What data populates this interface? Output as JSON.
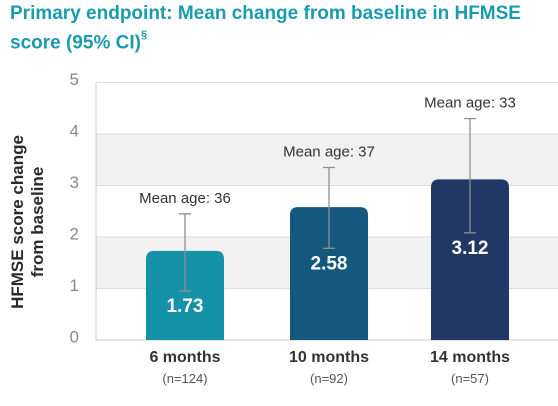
{
  "chart_data": {
    "type": "bar",
    "title": "Primary endpoint: Mean change from baseline in HFMSE score (95% CI)",
    "title_marker": "§",
    "ylabel_lines": [
      "HFMSE score change",
      "from baseline"
    ],
    "ylim": [
      0,
      5
    ],
    "yticks": [
      "0",
      "1",
      "2",
      "3",
      "4",
      "5"
    ],
    "categories": [
      "6 months",
      "10 months",
      "14 months"
    ],
    "n_labels": [
      "(n=124)",
      "(n=92)",
      "(n=57)"
    ],
    "values": [
      1.73,
      2.58,
      3.12
    ],
    "value_labels": [
      "1.73",
      "2.58",
      "3.12"
    ],
    "ci_low": [
      0.95,
      1.78,
      2.08
    ],
    "ci_high": [
      2.45,
      3.35,
      4.3
    ],
    "annotations": [
      "Mean age: 36",
      "Mean age: 37",
      "Mean age: 33"
    ],
    "bar_colors": [
      "#1592a8",
      "#15587e",
      "#213866"
    ],
    "band_color": "#f1f1f1",
    "grid": true
  }
}
